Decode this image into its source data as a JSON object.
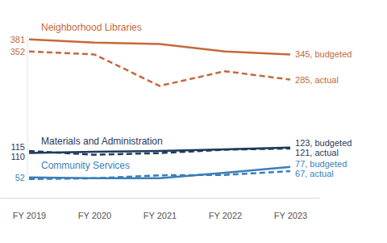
{
  "chart_data": {
    "type": "line",
    "categories": [
      "FY 2019",
      "FY 2020",
      "FY 2021",
      "FY 2022",
      "FY 2023"
    ],
    "ylim": [
      40,
      390
    ],
    "tick_labels": "x",
    "grid": false,
    "data_labels": true,
    "series": [
      {
        "name": "Neighborhood Libraries",
        "color": "#c4693c",
        "line_style": "solid",
        "marker": "none",
        "values": [
          381,
          373,
          370,
          352,
          345
        ],
        "value_labels": [
          "381",
          null,
          null,
          null,
          "345, budgeted"
        ]
      },
      {
        "color": "#c4693c",
        "line_style": "dashed",
        "marker": "none",
        "values": [
          352,
          345,
          270,
          305,
          285
        ],
        "value_labels": [
          "352",
          null,
          null,
          null,
          "285, actual"
        ]
      },
      {
        "name": "Materials and Administration",
        "color": "#1f3a5c",
        "line_style": "solid",
        "marker": "none",
        "values": [
          110,
          113,
          115,
          119,
          123
        ],
        "value_labels": [
          "110",
          null,
          null,
          null,
          "123, budgeted"
        ]
      },
      {
        "color": "#1f3a5c",
        "line_style": "dashed",
        "marker": "none",
        "values": [
          115,
          106,
          110,
          118,
          121
        ],
        "value_labels": [
          "115",
          null,
          null,
          null,
          "121, actual"
        ]
      },
      {
        "name": "Community Services",
        "color": "#3a7fb8",
        "line_style": "solid",
        "marker": "none",
        "values": [
          52,
          50,
          50,
          63,
          77
        ],
        "value_labels": [
          "52",
          null,
          null,
          null,
          "77, budgeted"
        ]
      },
      {
        "color": "#3a7fb8",
        "line_style": "dashed",
        "marker": "none",
        "values": [
          48,
          50,
          57,
          58,
          67
        ],
        "value_labels": [
          null,
          null,
          null,
          null,
          "67, actual"
        ]
      }
    ]
  }
}
